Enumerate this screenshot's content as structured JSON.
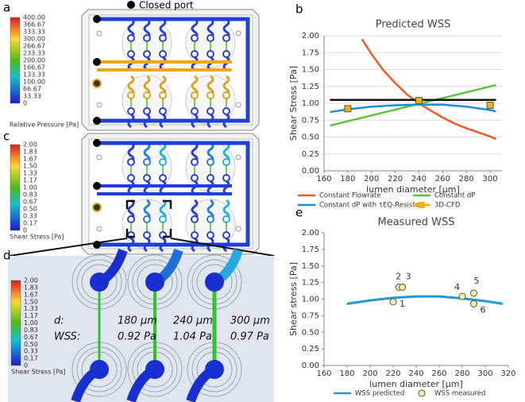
{
  "figure": {
    "panels": [
      "a",
      "b",
      "c",
      "d",
      "e"
    ],
    "port_legend": "Closed port",
    "pressure_scale": {
      "labels": [
        "400.00",
        "366.67",
        "333.33",
        "300.00",
        "266.67",
        "233.33",
        "200.00",
        "166.67",
        "133.33",
        "100.00",
        "66.67",
        "33.33",
        "0"
      ],
      "title": "Relative Pressure [Pa]"
    },
    "shear_scale": {
      "labels": [
        "2.00",
        "1.83",
        "1.67",
        "1.50",
        "1.33",
        "1.17",
        "1.00",
        "0.83",
        "0.67",
        "0.50",
        "0.33",
        "0.17",
        "0"
      ],
      "title": "Shear Stress [Pa]"
    },
    "detail": {
      "row_labels": [
        "d:",
        "WSS:"
      ],
      "diameters": [
        "180 µm",
        "240 µm",
        "300 µm"
      ],
      "wss": [
        "0.92 Pa",
        "1.04 Pa",
        "0.97 Pa"
      ],
      "scale_labels": [
        "2.00",
        "1.83",
        "1.67",
        "1.50",
        "1.33",
        "1.17",
        "1.00",
        "0.83",
        "0.67",
        "0.50",
        "0.33",
        "0.17",
        "0"
      ],
      "scale_title": "Shear Stress [Pa]"
    }
  },
  "chart_data": [
    {
      "type": "line",
      "title": "Predicted WSS",
      "x_label": "lumen diameter [µm]",
      "y_label": "Shear Stress [Pa]",
      "grid": true,
      "xlim": [
        160,
        310
      ],
      "xticks": [
        160,
        180,
        200,
        220,
        240,
        260,
        280,
        300
      ],
      "ylim": [
        0,
        2
      ],
      "yticks": [
        {
          "value": 0,
          "label": "0.00"
        },
        {
          "value": 0.25,
          "label": "0.25"
        },
        {
          "value": 0.5,
          "label": "0.50"
        },
        {
          "value": 0.75,
          "label": "0.75"
        },
        {
          "value": 1,
          "label": "1.00"
        },
        {
          "value": 1.25,
          "label": "1.25"
        },
        {
          "value": 1.5,
          "label": "1.50"
        },
        {
          "value": 1.75,
          "label": "1.75"
        },
        {
          "value": 2,
          "label": "2.00"
        }
      ],
      "series": [
        {
          "name": "Constant Flowrate",
          "color": "#f15a24",
          "x": [
            192,
            200,
            210,
            220,
            230,
            240,
            250,
            260,
            270,
            280,
            290,
            300,
            305
          ],
          "values": [
            1.95,
            1.73,
            1.49,
            1.3,
            1.13,
            1.0,
            0.89,
            0.79,
            0.7,
            0.63,
            0.57,
            0.51,
            0.47
          ]
        },
        {
          "name": "Constant dP",
          "color": "#5cc43c",
          "x": [
            165,
            305
          ],
          "values": [
            0.67,
            1.27
          ]
        },
        {
          "name": "Constant dP with τEQ-Resistor",
          "color": "#1f8fd1",
          "x": [
            165,
            180,
            200,
            220,
            240,
            260,
            280,
            300,
            305
          ],
          "values": [
            0.87,
            0.91,
            0.95,
            0.97,
            0.98,
            0.98,
            0.95,
            0.9,
            0.88
          ]
        },
        {
          "color": "#111111",
          "x": [
            165,
            305
          ],
          "values": [
            1.05,
            1.05
          ]
        },
        {
          "name": "3D-CFD",
          "color": "#f5b400",
          "marker": "square",
          "x": [
            180,
            240,
            300
          ],
          "values": [
            0.92,
            1.04,
            0.97
          ]
        }
      ]
    },
    {
      "type": "line",
      "title": "Measured WSS",
      "x_label": "lumen diameter [µm]",
      "y_label": "Shear stress [Pa]",
      "grid": false,
      "xlim": [
        160,
        320
      ],
      "xticks": [
        160,
        180,
        200,
        220,
        240,
        260,
        280,
        300,
        320
      ],
      "ylim": [
        0,
        2
      ],
      "yticks": [
        {
          "value": 0,
          "label": "0.00"
        },
        {
          "value": 0.25,
          "label": "0.25"
        },
        {
          "value": 0.5,
          "label": "0.50"
        },
        {
          "value": 0.75,
          "label": "0.75"
        },
        {
          "value": 1,
          "label": "1.00"
        },
        {
          "value": 1.25,
          "label": "1.25"
        },
        {
          "value": 1.5,
          "label": "1.50"
        },
        {
          "value": 1.75,
          "label": "1.75"
        },
        {
          "value": 2,
          "label": "2.00"
        }
      ],
      "series": [
        {
          "name": "WSS predicted",
          "color": "#1f9ad6",
          "x": [
            180,
            200,
            220,
            240,
            260,
            280,
            300,
            315
          ],
          "values": [
            0.93,
            0.98,
            1.02,
            1.04,
            1.04,
            1.01,
            0.97,
            0.93
          ]
        },
        {
          "name": "WSS measured",
          "color": "#f4ef9c",
          "marker": "circle",
          "x": [
            220,
            225,
            228,
            280,
            290,
            290
          ],
          "values": [
            0.96,
            1.18,
            1.18,
            1.04,
            1.09,
            0.93
          ],
          "point_labels": [
            "1",
            "2",
            "3",
            "4",
            "5",
            "6"
          ]
        }
      ]
    }
  ]
}
